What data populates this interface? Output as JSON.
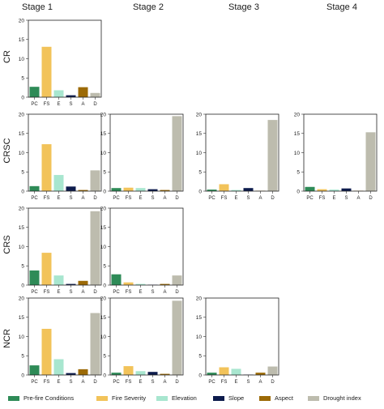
{
  "stage_titles": [
    "Stage 1",
    "Stage 2",
    "Stage 3",
    "Stage 4"
  ],
  "row_labels": [
    "CR",
    "CRSC",
    "CRS",
    "NCR"
  ],
  "legend": [
    {
      "key": "PC",
      "label": "Pre-fire Conditions",
      "color": "#2e8b57"
    },
    {
      "key": "FS",
      "label": "Fire Severity",
      "color": "#f2c35a"
    },
    {
      "key": "E",
      "label": "Elevation",
      "color": "#a8e6cf"
    },
    {
      "key": "S",
      "label": "Slope",
      "color": "#0d1b4c"
    },
    {
      "key": "A",
      "label": "Aspect",
      "color": "#9c6a06"
    },
    {
      "key": "D",
      "label": "Drought index",
      "color": "#bdbcae"
    }
  ],
  "chart_data": [
    {
      "type": "bar",
      "row": "CR",
      "stage": "Stage 1",
      "categories": [
        "PC",
        "FS",
        "E",
        "S",
        "A",
        "D"
      ],
      "values": [
        2.7,
        13.1,
        1.8,
        0.5,
        2.6,
        1.1
      ],
      "ylim": [
        0,
        20
      ],
      "yticks": [
        0,
        5,
        10,
        15,
        20
      ]
    },
    {
      "type": "bar",
      "row": "CRSC",
      "stage": "Stage 1",
      "categories": [
        "PC",
        "FS",
        "E",
        "S",
        "A",
        "D"
      ],
      "values": [
        1.3,
        12.2,
        4.2,
        1.2,
        0.3,
        5.4
      ],
      "ylim": [
        0,
        20
      ],
      "yticks": [
        0,
        5,
        10,
        15,
        20
      ]
    },
    {
      "type": "bar",
      "row": "CRSC",
      "stage": "Stage 2",
      "categories": [
        "PC",
        "FS",
        "E",
        "S",
        "A",
        "D"
      ],
      "values": [
        0.8,
        0.9,
        0.8,
        0.5,
        0.3,
        19.5
      ],
      "ylim": [
        0,
        20
      ],
      "yticks": [
        0,
        5,
        10,
        15,
        20
      ]
    },
    {
      "type": "bar",
      "row": "CRSC",
      "stage": "Stage 3",
      "categories": [
        "PC",
        "FS",
        "E",
        "S",
        "A",
        "D"
      ],
      "values": [
        0.4,
        1.8,
        0.3,
        0.8,
        0.1,
        18.5
      ],
      "ylim": [
        0,
        20
      ],
      "yticks": [
        0,
        5,
        10,
        15,
        20
      ]
    },
    {
      "type": "bar",
      "row": "CRSC",
      "stage": "Stage 4",
      "categories": [
        "PC",
        "FS",
        "E",
        "S",
        "A",
        "D"
      ],
      "values": [
        1.1,
        0.5,
        0.4,
        0.7,
        0.1,
        15.3
      ],
      "ylim": [
        0,
        20
      ],
      "yticks": [
        0,
        5,
        10,
        15,
        20
      ]
    },
    {
      "type": "bar",
      "row": "CRS",
      "stage": "Stage 1",
      "categories": [
        "PC",
        "FS",
        "E",
        "S",
        "A",
        "D"
      ],
      "values": [
        3.8,
        8.4,
        2.5,
        0.3,
        1.1,
        19.2
      ],
      "ylim": [
        0,
        20
      ],
      "yticks": [
        0,
        5,
        10,
        15,
        20
      ]
    },
    {
      "type": "bar",
      "row": "CRS",
      "stage": "Stage 2",
      "categories": [
        "PC",
        "FS",
        "E",
        "S",
        "A",
        "D"
      ],
      "values": [
        2.8,
        0.7,
        0.3,
        0.1,
        0.3,
        2.5
      ],
      "ylim": [
        0,
        20
      ],
      "yticks": [
        0,
        5,
        10,
        15,
        20
      ]
    },
    {
      "type": "bar",
      "row": "NCR",
      "stage": "Stage 1",
      "categories": [
        "PC",
        "FS",
        "E",
        "S",
        "A",
        "D"
      ],
      "values": [
        2.5,
        12.0,
        4.1,
        0.5,
        1.5,
        16.1
      ],
      "ylim": [
        0,
        20
      ],
      "yticks": [
        0,
        5,
        10,
        15,
        20
      ]
    },
    {
      "type": "bar",
      "row": "NCR",
      "stage": "Stage 2",
      "categories": [
        "PC",
        "FS",
        "E",
        "S",
        "A",
        "D"
      ],
      "values": [
        0.6,
        2.3,
        1.0,
        0.8,
        0.3,
        19.3
      ],
      "ylim": [
        0,
        20
      ],
      "yticks": [
        0,
        5,
        10,
        15,
        20
      ]
    },
    {
      "type": "bar",
      "row": "NCR",
      "stage": "Stage 3",
      "categories": [
        "PC",
        "FS",
        "E",
        "S",
        "A",
        "D"
      ],
      "values": [
        0.6,
        2.0,
        1.6,
        0.1,
        0.6,
        2.2
      ],
      "ylim": [
        0,
        20
      ],
      "yticks": [
        0,
        5,
        10,
        15,
        20
      ]
    }
  ]
}
